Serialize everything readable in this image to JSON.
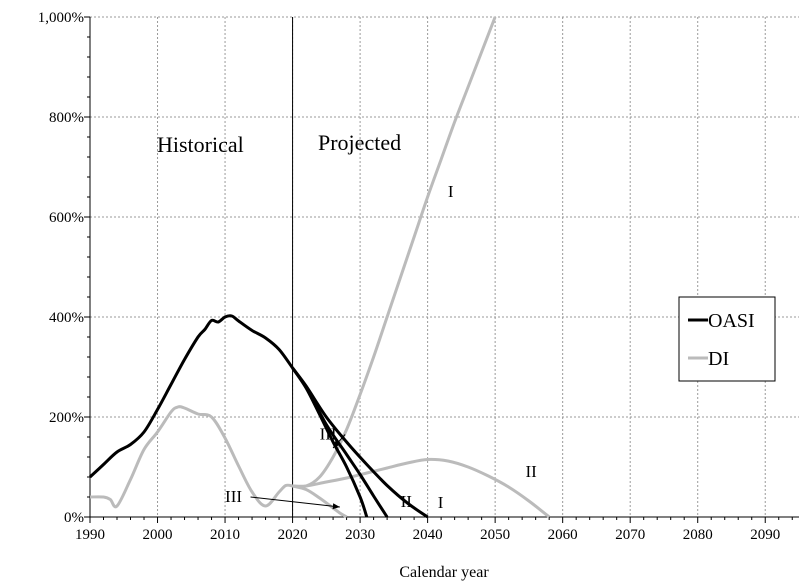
{
  "chart_data": {
    "type": "line",
    "title": "",
    "xlabel": "Calendar year",
    "ylabel": "",
    "xlim": [
      1990,
      2095
    ],
    "ylim": [
      0,
      1000
    ],
    "x_ticks": [
      1990,
      2000,
      2010,
      2020,
      2030,
      2040,
      2050,
      2060,
      2070,
      2080,
      2090
    ],
    "y_ticks": [
      0,
      200,
      400,
      600,
      800,
      1000
    ],
    "y_tick_labels": [
      "0%",
      "200%",
      "400%",
      "600%",
      "800%",
      "1,000%"
    ],
    "grid": true,
    "legend_placement": "right",
    "region_divider_year": 2020,
    "region_labels": [
      "Historical",
      "Projected"
    ],
    "legend": [
      {
        "name": "OASI",
        "color": "#000000"
      },
      {
        "name": "DI",
        "color": "#bbbbbb"
      }
    ],
    "series": [
      {
        "name": "OASI",
        "segment": "Historical",
        "color": "#000000",
        "x": [
          1990,
          1992,
          1994,
          1996,
          1998,
          2000,
          2002,
          2004,
          2006,
          2007,
          2008,
          2009,
          2010,
          2011,
          2012,
          2014,
          2016,
          2018,
          2020
        ],
        "y": [
          80,
          105,
          130,
          145,
          170,
          215,
          265,
          315,
          360,
          375,
          393,
          390,
          400,
          402,
          392,
          373,
          358,
          335,
          298
        ]
      },
      {
        "name": "OASI",
        "segment": "I",
        "color": "#000000",
        "x": [
          2020,
          2022,
          2025,
          2028,
          2031,
          2034,
          2037,
          2040
        ],
        "y": [
          298,
          262,
          200,
          150,
          105,
          63,
          28,
          0
        ]
      },
      {
        "name": "OASI",
        "segment": "II",
        "color": "#000000",
        "x": [
          2020,
          2022,
          2025,
          2028,
          2030,
          2032,
          2034
        ],
        "y": [
          298,
          260,
          185,
          125,
          85,
          42,
          0
        ]
      },
      {
        "name": "OASI",
        "segment": "III",
        "color": "#000000",
        "x": [
          2020,
          2022,
          2024,
          2026,
          2028,
          2030,
          2031
        ],
        "y": [
          298,
          258,
          205,
          150,
          100,
          40,
          0
        ]
      },
      {
        "name": "DI",
        "segment": "Historical",
        "color": "#bbbbbb",
        "x": [
          1990,
          1992,
          1993,
          1994,
          1996,
          1998,
          2000,
          2002,
          2003,
          2004,
          2006,
          2008,
          2010,
          2012,
          2014,
          2016,
          2018,
          2019,
          2020
        ],
        "y": [
          40,
          40,
          35,
          22,
          75,
          135,
          170,
          210,
          220,
          218,
          206,
          200,
          158,
          102,
          50,
          22,
          50,
          63,
          62
        ]
      },
      {
        "name": "DI",
        "segment": "I",
        "color": "#bbbbbb",
        "x": [
          2020,
          2022,
          2024,
          2026,
          2028,
          2030,
          2032,
          2034,
          2036,
          2038,
          2040,
          2042,
          2044,
          2046,
          2048,
          2050
        ],
        "y": [
          62,
          62,
          80,
          120,
          175,
          245,
          320,
          400,
          480,
          560,
          640,
          715,
          790,
          860,
          930,
          1000
        ]
      },
      {
        "name": "DI",
        "segment": "II",
        "color": "#bbbbbb",
        "x": [
          2020,
          2022,
          2025,
          2028,
          2031,
          2034,
          2037,
          2040,
          2043,
          2046,
          2049,
          2052,
          2055,
          2058
        ],
        "y": [
          62,
          62,
          70,
          78,
          88,
          98,
          108,
          115,
          112,
          100,
          82,
          60,
          32,
          0
        ]
      },
      {
        "name": "DI",
        "segment": "III",
        "color": "#bbbbbb",
        "x": [
          2020,
          2022,
          2024,
          2026,
          2027,
          2028
        ],
        "y": [
          62,
          55,
          38,
          18,
          8,
          0
        ]
      }
    ],
    "annotations": [
      {
        "text": "I",
        "x": 2043,
        "y": 640
      },
      {
        "text": "I",
        "x": 2041.5,
        "y": 18
      },
      {
        "text": "II",
        "x": 2036,
        "y": 20
      },
      {
        "text": "II",
        "x": 2054.5,
        "y": 80
      },
      {
        "text": "III",
        "x": 2024,
        "y": 155,
        "arrow_to": [
          2026,
          138
        ]
      },
      {
        "text": "III",
        "x": 2010,
        "y": 30,
        "arrow_to": [
          2027,
          20
        ]
      }
    ]
  }
}
